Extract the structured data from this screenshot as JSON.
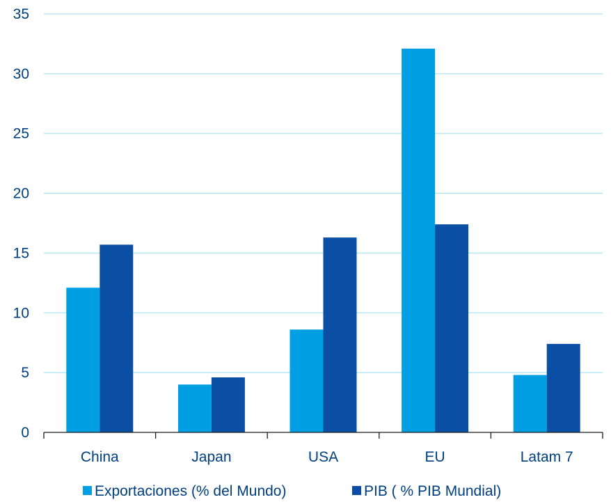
{
  "chart_data": {
    "type": "bar",
    "title": "",
    "xlabel": "",
    "ylabel": "",
    "categories": [
      "China",
      "Japan",
      "USA",
      "EU",
      "Latam 7"
    ],
    "series": [
      {
        "name": "Exportaciones (% del Mundo)",
        "values": [
          12.1,
          4.0,
          8.6,
          32.1,
          4.8
        ],
        "color": "#009fe3"
      },
      {
        "name": "PIB ( % PIB Mundial)",
        "values": [
          15.7,
          4.6,
          16.3,
          17.4,
          7.4
        ],
        "color": "#0a4fa3"
      }
    ],
    "ylim": [
      0,
      35
    ],
    "yticks": [
      0,
      5,
      10,
      15,
      20,
      25,
      30,
      35
    ],
    "grid": true,
    "grid_color": "#aee3f4",
    "axis_color": "#1a1a1a",
    "text_color": "#003f7f",
    "legend_position": "bottom"
  }
}
